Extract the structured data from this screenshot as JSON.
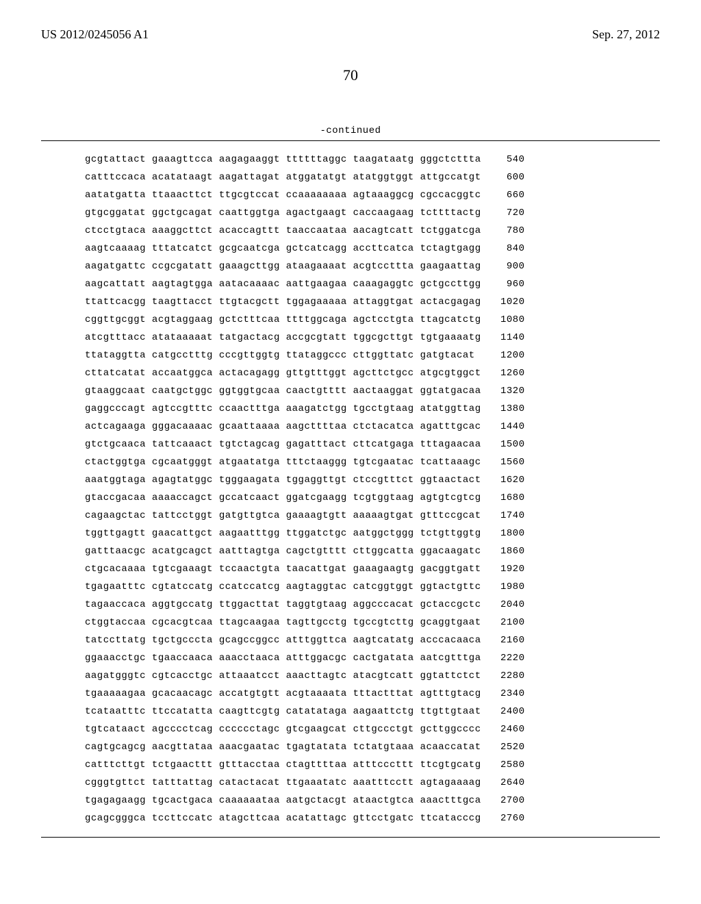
{
  "header": {
    "pub_number": "US 2012/0245056 A1",
    "pub_date": "Sep. 27, 2012"
  },
  "page_number": "70",
  "continued_label": "-continued",
  "sequence": {
    "font_family": "Courier New",
    "font_size_pt": 10,
    "rows": [
      {
        "groups": [
          "gcgtattact",
          "gaaagttcca",
          "aagagaaggt",
          "ttttttaggc",
          "taagataatg",
          "gggctcttta"
        ],
        "pos": 540
      },
      {
        "groups": [
          "catttccaca",
          "acatataagt",
          "aagattagat",
          "atggatatgt",
          "atatggtggt",
          "attgccatgt"
        ],
        "pos": 600
      },
      {
        "groups": [
          "aatatgatta",
          "ttaaacttct",
          "ttgcgtccat",
          "ccaaaaaaaa",
          "agtaaaggcg",
          "cgccacggtc"
        ],
        "pos": 660
      },
      {
        "groups": [
          "gtgcggatat",
          "ggctgcagat",
          "caattggtga",
          "agactgaagt",
          "caccaagaag",
          "tcttttactg"
        ],
        "pos": 720
      },
      {
        "groups": [
          "ctcctgtaca",
          "aaaggcttct",
          "acaccagttt",
          "taaccaataa",
          "aacagtcatt",
          "tctggatcga"
        ],
        "pos": 780
      },
      {
        "groups": [
          "aagtcaaaag",
          "tttatcatct",
          "gcgcaatcga",
          "gctcatcagg",
          "accttcatca",
          "tctagtgagg"
        ],
        "pos": 840
      },
      {
        "groups": [
          "aagatgattc",
          "ccgcgatatt",
          "gaaagcttgg",
          "ataagaaaat",
          "acgtccttta",
          "gaagaattag"
        ],
        "pos": 900
      },
      {
        "groups": [
          "aagcattatt",
          "aagtagtgga",
          "aatacaaaac",
          "aattgaagaa",
          "caaagaggtc",
          "gctgccttgg"
        ],
        "pos": 960
      },
      {
        "groups": [
          "ttattcacgg",
          "taagttacct",
          "ttgtacgctt",
          "tggagaaaaa",
          "attaggtgat",
          "actacgagag"
        ],
        "pos": 1020
      },
      {
        "groups": [
          "cggttgcggt",
          "acgtaggaag",
          "gctctttcaa",
          "ttttggcaga",
          "agctcctgta",
          "ttagcatctg"
        ],
        "pos": 1080
      },
      {
        "groups": [
          "atcgtttacc",
          "atataaaaat",
          "tatgactacg",
          "accgcgtatt",
          "tggcgcttgt",
          "tgtgaaaatg"
        ],
        "pos": 1140
      },
      {
        "groups": [
          "ttataggtta",
          "catgcctttg",
          "cccgttggtg",
          "ttataggccc",
          "cttggttatc",
          "gatgtacat"
        ],
        "pos": 1200
      },
      {
        "groups": [
          "cttatcatat",
          "accaatggca",
          "actacagagg",
          "gttgtttggt",
          "agcttctgcc",
          "atgcgtggct"
        ],
        "pos": 1260
      },
      {
        "groups": [
          "gtaaggcaat",
          "caatgctggc",
          "ggtggtgcaa",
          "caactgtttt",
          "aactaaggat",
          "ggtatgacaa"
        ],
        "pos": 1320
      },
      {
        "groups": [
          "gaggcccagt",
          "agtccgtttc",
          "ccaactttga",
          "aaagatctgg",
          "tgcctgtaag",
          "atatggttag"
        ],
        "pos": 1380
      },
      {
        "groups": [
          "actcagaaga",
          "gggacaaaac",
          "gcaattaaaa",
          "aagcttttaa",
          "ctctacatca",
          "agatttgcac"
        ],
        "pos": 1440
      },
      {
        "groups": [
          "gtctgcaaca",
          "tattcaaact",
          "tgtctagcag",
          "gagatttact",
          "cttcatgaga",
          "tttagaacaa"
        ],
        "pos": 1500
      },
      {
        "groups": [
          "ctactggtga",
          "cgcaatgggt",
          "atgaatatga",
          "tttctaaggg",
          "tgtcgaatac",
          "tcattaaagc"
        ],
        "pos": 1560
      },
      {
        "groups": [
          "aaatggtaga",
          "agagtatggc",
          "tgggaagata",
          "tggaggttgt",
          "ctccgtttct",
          "ggtaactact"
        ],
        "pos": 1620
      },
      {
        "groups": [
          "gtaccgacaa",
          "aaaaccagct",
          "gccatcaact",
          "ggatcgaagg",
          "tcgtggtaag",
          "agtgtcgtcg"
        ],
        "pos": 1680
      },
      {
        "groups": [
          "cagaagctac",
          "tattcctggt",
          "gatgttgtca",
          "gaaaagtgtt",
          "aaaaagtgat",
          "gtttccgcat"
        ],
        "pos": 1740
      },
      {
        "groups": [
          "tggttgagtt",
          "gaacattgct",
          "aagaatttgg",
          "ttggatctgc",
          "aatggctggg",
          "tctgttggtg"
        ],
        "pos": 1800
      },
      {
        "groups": [
          "gatttaacgc",
          "acatgcagct",
          "aatttagtga",
          "cagctgtttt",
          "cttggcatta",
          "ggacaagatc"
        ],
        "pos": 1860
      },
      {
        "groups": [
          "ctgcacaaaa",
          "tgtcgaaagt",
          "tccaactgta",
          "taacattgat",
          "gaaagaagtg",
          "gacggtgatt"
        ],
        "pos": 1920
      },
      {
        "groups": [
          "tgagaatttc",
          "cgtatccatg",
          "ccatccatcg",
          "aagtaggtac",
          "catcggtggt",
          "ggtactgttc"
        ],
        "pos": 1980
      },
      {
        "groups": [
          "tagaaccaca",
          "aggtgccatg",
          "ttggacttat",
          "taggtgtaag",
          "aggcccacat",
          "gctaccgctc"
        ],
        "pos": 2040
      },
      {
        "groups": [
          "ctggtaccaa",
          "cgcacgtcaa",
          "ttagcaagaa",
          "tagttgcctg",
          "tgccgtcttg",
          "gcaggtgaat"
        ],
        "pos": 2100
      },
      {
        "groups": [
          "tatccttatg",
          "tgctgcccta",
          "gcagccggcc",
          "atttggttca",
          "aagtcatatg",
          "acccacaaca"
        ],
        "pos": 2160
      },
      {
        "groups": [
          "ggaaacctgc",
          "tgaaccaaca",
          "aaacctaaca",
          "atttggacgc",
          "cactgatata",
          "aatcgtttga"
        ],
        "pos": 2220
      },
      {
        "groups": [
          "aagatgggtc",
          "cgtcacctgc",
          "attaaatcct",
          "aaacttagtc",
          "atacgtcatt",
          "ggtattctct"
        ],
        "pos": 2280
      },
      {
        "groups": [
          "tgaaaaagaa",
          "gcacaacagc",
          "accatgtgtt",
          "acgtaaaata",
          "tttactttat",
          "agtttgtacg"
        ],
        "pos": 2340
      },
      {
        "groups": [
          "tcataatttc",
          "ttccatatta",
          "caagttcgtg",
          "catatataga",
          "aagaattctg",
          "ttgttgtaat"
        ],
        "pos": 2400
      },
      {
        "groups": [
          "tgtcataact",
          "agcccctcag",
          "cccccctagc",
          "gtcgaagcat",
          "cttgccctgt",
          "gcttggcccc"
        ],
        "pos": 2460
      },
      {
        "groups": [
          "cagtgcagcg",
          "aacgttataa",
          "aaacgaatac",
          "tgagtatata",
          "tctatgtaaa",
          "acaaccatat"
        ],
        "pos": 2520
      },
      {
        "groups": [
          "catttcttgt",
          "tctgaacttt",
          "gtttacctaa",
          "ctagttttaa",
          "atttcccttt",
          "ttcgtgcatg"
        ],
        "pos": 2580
      },
      {
        "groups": [
          "cgggtgttct",
          "tatttattag",
          "catactacat",
          "ttgaaatatc",
          "aaatttcctt",
          "agtagaaaag"
        ],
        "pos": 2640
      },
      {
        "groups": [
          "tgagagaagg",
          "tgcactgaca",
          "caaaaaataa",
          "aatgctacgt",
          "ataactgtca",
          "aaactttgca"
        ],
        "pos": 2700
      },
      {
        "groups": [
          "gcagcgggca",
          "tccttccatc",
          "atagcttcaa",
          "acatattagc",
          "gttcctgatc",
          "ttcatacccg"
        ],
        "pos": 2760
      }
    ]
  }
}
